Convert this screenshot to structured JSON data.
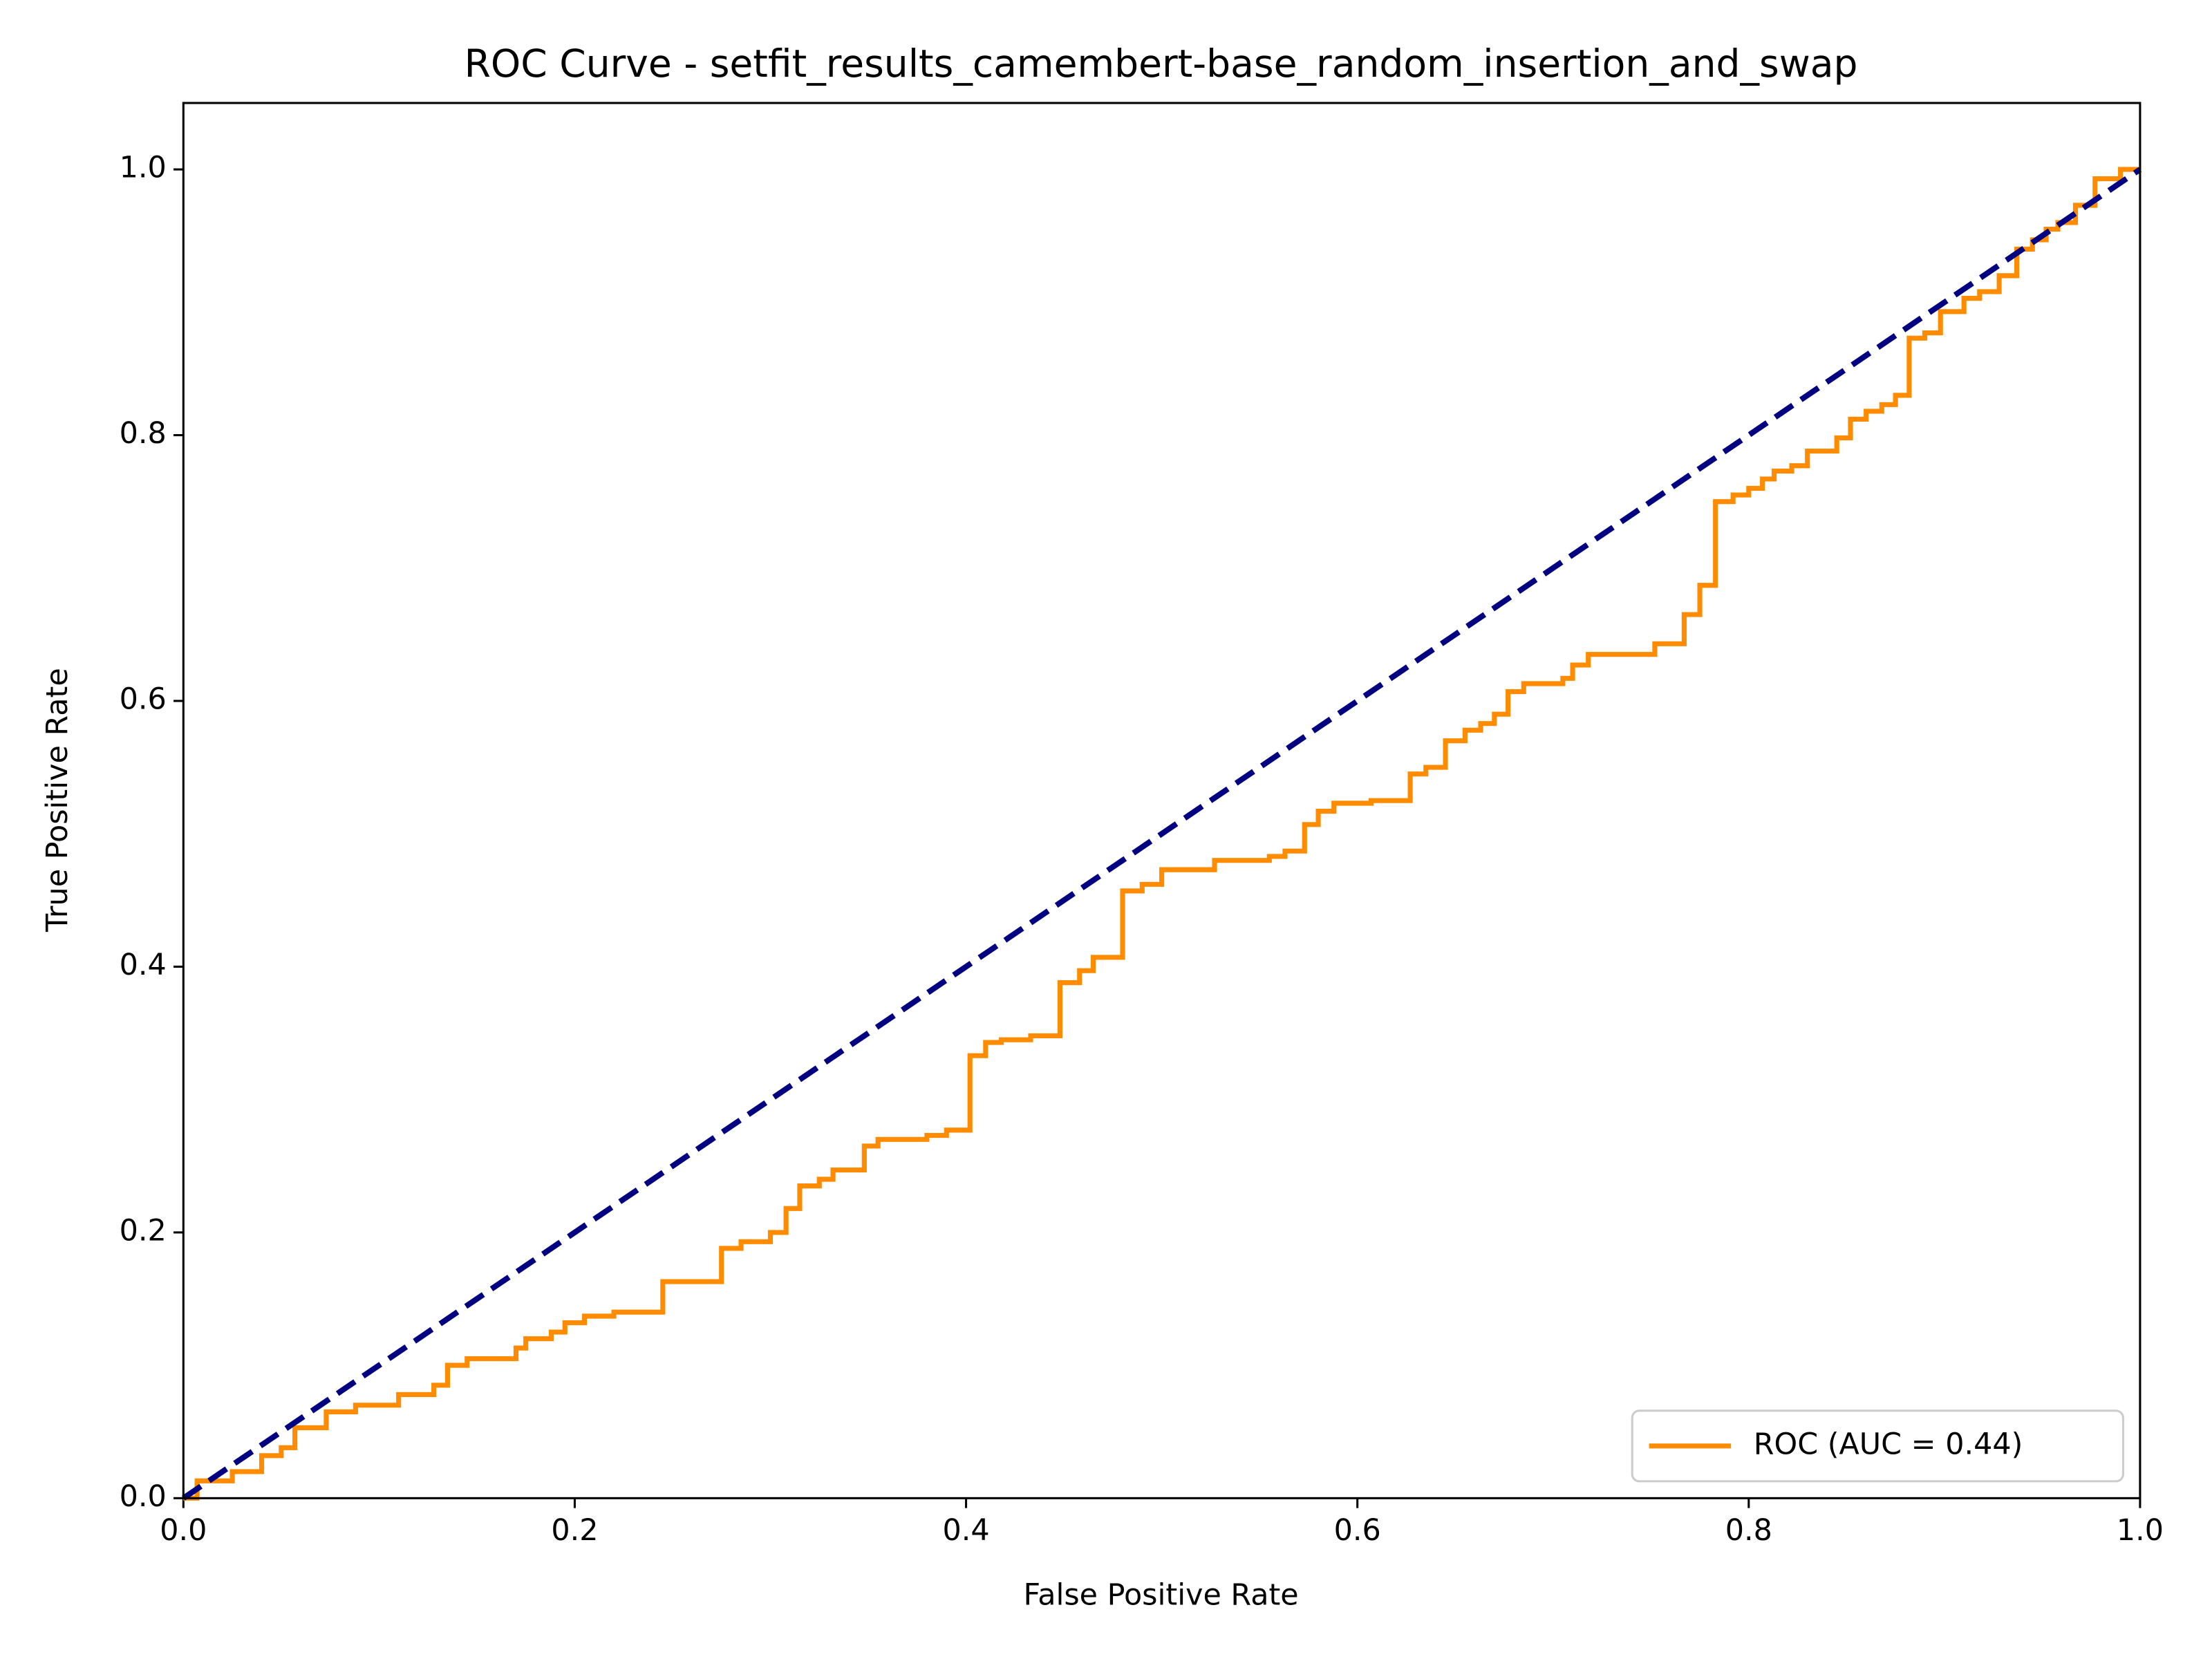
{
  "chart_data": {
    "type": "line",
    "title": "ROC Curve - setfit_results_camembert-base_random_insertion_and_swap",
    "x_label": "False Positive Rate",
    "y_label": "True Positive Rate",
    "xlim": [
      0,
      1
    ],
    "ylim": [
      0,
      1.05
    ],
    "xticks": [
      {
        "value": 0,
        "label": "0.0"
      },
      0.2,
      0.4,
      0.6,
      0.8,
      {
        "value": 1,
        "label": "1.0"
      }
    ],
    "yticks": [
      {
        "value": 0,
        "label": "0.0"
      },
      0.2,
      0.4,
      0.6,
      0.8,
      {
        "value": 1,
        "label": "1.0"
      }
    ],
    "legend": "lower right",
    "series": [
      {
        "name": "ROC (AUC = 0.44)",
        "color": "#ff8c00",
        "x": [
          0,
          0.007,
          0.007,
          0.025,
          0.025,
          0.04,
          0.04,
          0.05,
          0.05,
          0.057,
          0.057,
          0.073,
          0.073,
          0.088,
          0.088,
          0.11,
          0.11,
          0.128,
          0.128,
          0.135,
          0.135,
          0.145,
          0.145,
          0.17,
          0.17,
          0.175,
          0.175,
          0.188,
          0.188,
          0.195,
          0.195,
          0.205,
          0.205,
          0.22,
          0.22,
          0.245,
          0.245,
          0.275,
          0.275,
          0.285,
          0.285,
          0.3,
          0.3,
          0.308,
          0.308,
          0.315,
          0.315,
          0.325,
          0.325,
          0.332,
          0.332,
          0.348,
          0.348,
          0.355,
          0.355,
          0.38,
          0.38,
          0.39,
          0.39,
          0.402,
          0.402,
          0.41,
          0.41,
          0.418,
          0.418,
          0.433,
          0.433,
          0.448,
          0.448,
          0.458,
          0.458,
          0.465,
          0.465,
          0.48,
          0.48,
          0.49,
          0.49,
          0.5,
          0.5,
          0.527,
          0.527,
          0.555,
          0.555,
          0.563,
          0.563,
          0.573,
          0.573,
          0.58,
          0.58,
          0.588,
          0.588,
          0.607,
          0.607,
          0.627,
          0.627,
          0.635,
          0.635,
          0.645,
          0.645,
          0.655,
          0.655,
          0.663,
          0.663,
          0.67,
          0.67,
          0.677,
          0.677,
          0.685,
          0.685,
          0.705,
          0.705,
          0.71,
          0.71,
          0.718,
          0.718,
          0.752,
          0.752,
          0.767,
          0.767,
          0.775,
          0.775,
          0.783,
          0.783,
          0.792,
          0.792,
          0.8,
          0.8,
          0.807,
          0.807,
          0.813,
          0.813,
          0.822,
          0.822,
          0.83,
          0.83,
          0.845,
          0.845,
          0.852,
          0.852,
          0.86,
          0.86,
          0.868,
          0.868,
          0.875,
          0.875,
          0.882,
          0.882,
          0.89,
          0.89,
          0.898,
          0.898,
          0.91,
          0.91,
          0.918,
          0.918,
          0.928,
          0.928,
          0.937,
          0.937,
          0.945,
          0.945,
          0.952,
          0.952,
          0.958,
          0.958,
          0.967,
          0.967,
          0.977,
          0.977,
          0.99,
          0.99,
          1
        ],
        "values": [
          0,
          0,
          0.013,
          0.013,
          0.02,
          0.02,
          0.032,
          0.032,
          0.038,
          0.038,
          0.053,
          0.053,
          0.065,
          0.065,
          0.07,
          0.07,
          0.078,
          0.078,
          0.085,
          0.085,
          0.1,
          0.1,
          0.105,
          0.105,
          0.113,
          0.113,
          0.12,
          0.12,
          0.125,
          0.125,
          0.132,
          0.132,
          0.137,
          0.137,
          0.14,
          0.14,
          0.163,
          0.163,
          0.188,
          0.188,
          0.193,
          0.193,
          0.2,
          0.2,
          0.218,
          0.218,
          0.235,
          0.235,
          0.24,
          0.24,
          0.247,
          0.247,
          0.265,
          0.265,
          0.27,
          0.27,
          0.273,
          0.273,
          0.277,
          0.277,
          0.333,
          0.333,
          0.343,
          0.343,
          0.345,
          0.345,
          0.348,
          0.348,
          0.388,
          0.388,
          0.397,
          0.397,
          0.407,
          0.407,
          0.457,
          0.457,
          0.462,
          0.462,
          0.473,
          0.473,
          0.48,
          0.48,
          0.483,
          0.483,
          0.487,
          0.487,
          0.507,
          0.507,
          0.517,
          0.517,
          0.523,
          0.523,
          0.525,
          0.525,
          0.545,
          0.545,
          0.55,
          0.55,
          0.57,
          0.57,
          0.578,
          0.578,
          0.583,
          0.583,
          0.59,
          0.59,
          0.607,
          0.607,
          0.613,
          0.613,
          0.617,
          0.617,
          0.627,
          0.627,
          0.635,
          0.635,
          0.643,
          0.643,
          0.665,
          0.665,
          0.687,
          0.687,
          0.75,
          0.75,
          0.755,
          0.755,
          0.76,
          0.76,
          0.767,
          0.767,
          0.773,
          0.773,
          0.777,
          0.777,
          0.788,
          0.788,
          0.798,
          0.798,
          0.812,
          0.812,
          0.818,
          0.818,
          0.823,
          0.823,
          0.83,
          0.83,
          0.873,
          0.873,
          0.877,
          0.877,
          0.893,
          0.893,
          0.903,
          0.903,
          0.908,
          0.908,
          0.92,
          0.92,
          0.94,
          0.94,
          0.947,
          0.947,
          0.955,
          0.955,
          0.96,
          0.96,
          0.973,
          0.973,
          0.993,
          0.993,
          1,
          1
        ]
      },
      {
        "color": "#000080",
        "dash": true,
        "x": [
          0,
          1
        ],
        "values": [
          0,
          1
        ]
      }
    ]
  }
}
